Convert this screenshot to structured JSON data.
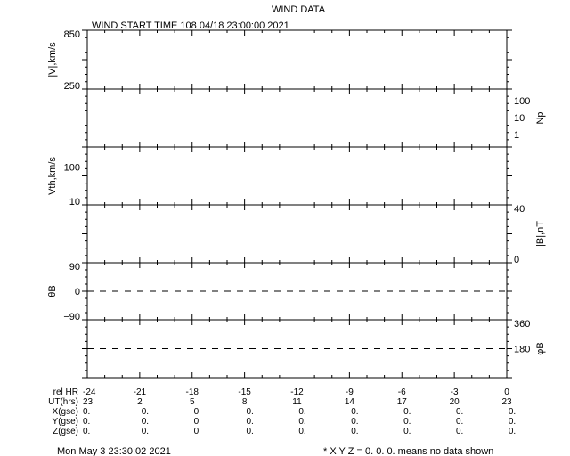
{
  "chart_data": {
    "type": "line",
    "title": "WIND DATA",
    "subtitle": "WIND START TIME 108 04/18 23:00:00 2021",
    "xlim": [
      -24,
      0
    ],
    "x_ticks": [
      "-24",
      "-21",
      "-18",
      "-15",
      "-12",
      "-9",
      "-6",
      "-3",
      "0"
    ],
    "panels": [
      {
        "ylabel": "|V|,km/s",
        "side": "left",
        "ticks": [
          {
            "v": 850,
            "label": "850"
          },
          {
            "v": 250,
            "label": "250"
          }
        ],
        "ylim": [
          250,
          850
        ],
        "scale": "linear",
        "series": []
      },
      {
        "ylabel": "Np",
        "side": "right",
        "ticks": [
          {
            "v": 100,
            "label": "100"
          },
          {
            "v": 10,
            "label": "10"
          },
          {
            "v": 1,
            "label": "1"
          }
        ],
        "ylim": [
          0.3,
          300
        ],
        "scale": "log",
        "series": []
      },
      {
        "ylabel": "Vth,km/s",
        "side": "left",
        "ticks": [
          {
            "v": 100,
            "label": "100"
          },
          {
            "v": 10,
            "label": "10"
          }
        ],
        "ylim": [
          10,
          300
        ],
        "scale": "log",
        "series": []
      },
      {
        "ylabel": "|B|,nT",
        "side": "right",
        "ticks": [
          {
            "v": 40,
            "label": "40"
          },
          {
            "v": 0,
            "label": "0"
          }
        ],
        "ylim": [
          0,
          40
        ],
        "scale": "linear",
        "series": []
      },
      {
        "ylabel": "θB",
        "side": "left",
        "ticks": [
          {
            "v": 90,
            "label": "90"
          },
          {
            "v": 0,
            "label": "0"
          },
          {
            "v": -90,
            "label": "−90"
          }
        ],
        "ylim": [
          -90,
          90
        ],
        "scale": "linear",
        "reference_line": 0,
        "series": []
      },
      {
        "ylabel": "φB",
        "side": "right",
        "ticks": [
          {
            "v": 360,
            "label": "360"
          },
          {
            "v": 180,
            "label": "180"
          }
        ],
        "ylim": [
          0,
          360
        ],
        "scale": "linear",
        "reference_line": 180,
        "series": []
      }
    ],
    "table": {
      "rows": [
        {
          "label": "rel HR",
          "values": [
            "-24",
            "-21",
            "-18",
            "-15",
            "-12",
            "-9",
            "-6",
            "-3",
            "0"
          ]
        },
        {
          "label": "UT(hrs)",
          "values": [
            "23",
            "2",
            "5",
            "8",
            "11",
            "14",
            "17",
            "20",
            "23"
          ]
        },
        {
          "label": "X(gse)",
          "values": [
            "0.",
            "0.",
            "0.",
            "0.",
            "0.",
            "0.",
            "0.",
            "0.",
            "0."
          ]
        },
        {
          "label": "Y(gse)",
          "values": [
            "0.",
            "0.",
            "0.",
            "0.",
            "0.",
            "0.",
            "0.",
            "0.",
            "0."
          ]
        },
        {
          "label": "Z(gse)",
          "values": [
            "0.",
            "0.",
            "0.",
            "0.",
            "0.",
            "0.",
            "0.",
            "0.",
            "0."
          ]
        }
      ]
    }
  },
  "footer": {
    "timestamp": "Mon May  3 23:30:02 2021",
    "note": "* X Y Z = 0. 0. 0. means no data shown"
  }
}
